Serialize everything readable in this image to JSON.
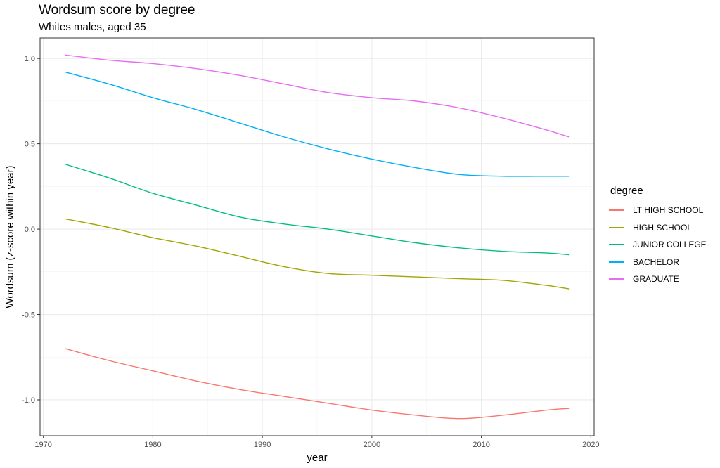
{
  "chart_data": {
    "type": "line",
    "title": "Wordsum score by degree",
    "subtitle": "Whites males, aged 35",
    "xlabel": "year",
    "ylabel": "Wordsum (z-score within year)",
    "xlim": [
      1969.7,
      2020.3
    ],
    "ylim": [
      -1.21,
      1.12
    ],
    "x_ticks": [
      1970,
      1980,
      1990,
      2000,
      2010,
      2020
    ],
    "y_ticks": [
      -1.0,
      -0.5,
      0.0,
      0.5,
      1.0
    ],
    "x_tick_labels": [
      "1970",
      "1980",
      "1990",
      "2000",
      "2010",
      "2020"
    ],
    "y_tick_labels": [
      "-1.0",
      "-0.5",
      "0.0",
      "0.5",
      "1.0"
    ],
    "grid": true,
    "legend_title": "degree",
    "legend_position": "right",
    "x": [
      1972,
      1976,
      1980,
      1984,
      1988,
      1992,
      1996,
      2000,
      2004,
      2008,
      2012,
      2016,
      2018
    ],
    "series": [
      {
        "name": "LT HIGH SCHOOL",
        "color": "#F8766D",
        "values": [
          -0.7,
          -0.77,
          -0.83,
          -0.89,
          -0.94,
          -0.98,
          -1.02,
          -1.06,
          -1.09,
          -1.11,
          -1.09,
          -1.06,
          -1.05
        ]
      },
      {
        "name": "HIGH SCHOOL",
        "color": "#A3A500",
        "values": [
          0.06,
          0.01,
          -0.05,
          -0.1,
          -0.16,
          -0.22,
          -0.26,
          -0.27,
          -0.28,
          -0.29,
          -0.3,
          -0.33,
          -0.35
        ]
      },
      {
        "name": "JUNIOR COLLEGE",
        "color": "#00BF7D",
        "values": [
          0.38,
          0.3,
          0.21,
          0.14,
          0.07,
          0.03,
          0.0,
          -0.04,
          -0.08,
          -0.11,
          -0.13,
          -0.14,
          -0.15
        ]
      },
      {
        "name": "BACHELOR",
        "color": "#00B0F6",
        "values": [
          0.92,
          0.85,
          0.77,
          0.7,
          0.62,
          0.54,
          0.47,
          0.41,
          0.36,
          0.32,
          0.31,
          0.31,
          0.31
        ]
      },
      {
        "name": "GRADUATE",
        "color": "#E76BF3",
        "values": [
          1.02,
          0.99,
          0.97,
          0.94,
          0.9,
          0.85,
          0.8,
          0.77,
          0.75,
          0.71,
          0.65,
          0.58,
          0.54
        ]
      }
    ]
  }
}
